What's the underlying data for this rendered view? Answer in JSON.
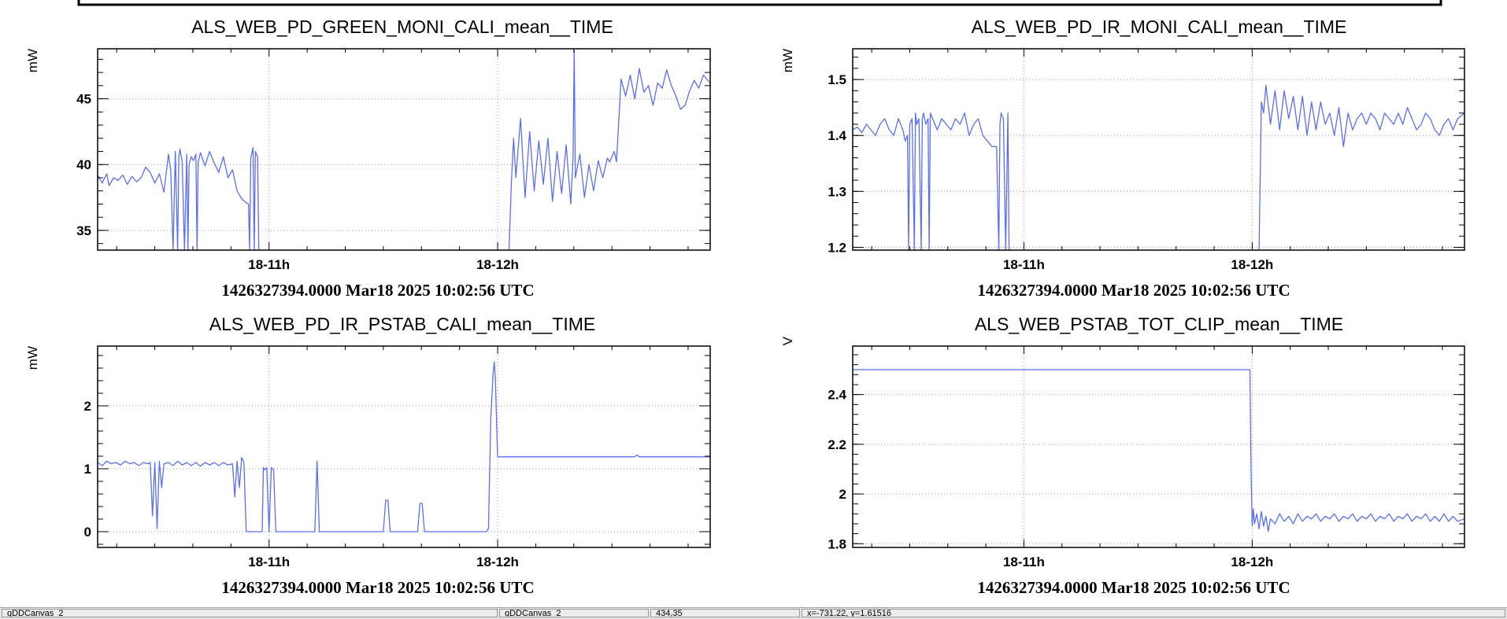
{
  "chart_data": [
    {
      "type": "line",
      "title": "ALS_WEB_PD_GREEN_MONI_CALI_mean__TIME",
      "ylabel": "mW",
      "xlabel": "1426327394.0000 Mar18 2025 10:02:56 UTC",
      "xlim": [
        10.25,
        12.93
      ],
      "ylim": [
        33.5,
        48.8
      ],
      "yticks": [
        35,
        40,
        45
      ],
      "ytick_labels": [
        "35",
        "40",
        "45"
      ],
      "xticks": [
        11,
        12
      ],
      "xtick_labels": [
        "18-11h",
        "18-12h"
      ],
      "grid": true,
      "color": "#5a6ff0",
      "x": [
        10.25,
        10.27,
        10.29,
        10.3,
        10.32,
        10.34,
        10.36,
        10.38,
        10.4,
        10.42,
        10.44,
        10.46,
        10.48,
        10.5,
        10.52,
        10.54,
        10.56,
        10.57,
        10.58,
        10.59,
        10.6,
        10.605,
        10.61,
        10.62,
        10.63,
        10.64,
        10.645,
        10.65,
        10.66,
        10.67,
        10.68,
        10.685,
        10.69,
        10.7,
        10.72,
        10.74,
        10.76,
        10.78,
        10.8,
        10.82,
        10.84,
        10.86,
        10.88,
        10.9,
        10.91,
        10.915,
        10.92,
        10.93,
        10.935,
        10.94,
        10.95,
        10.955,
        10.96,
        11.0,
        11.5,
        12.05,
        12.06,
        12.07,
        12.08,
        12.1,
        12.12,
        12.14,
        12.16,
        12.18,
        12.2,
        12.22,
        12.24,
        12.26,
        12.28,
        12.3,
        12.32,
        12.33,
        12.335,
        12.34,
        12.36,
        12.38,
        12.4,
        12.42,
        12.44,
        12.46,
        12.48,
        12.49,
        12.5,
        12.51,
        12.52,
        12.54,
        12.56,
        12.58,
        12.6,
        12.62,
        12.64,
        12.66,
        12.68,
        12.7,
        12.72,
        12.74,
        12.76,
        12.78,
        12.8,
        12.82,
        12.84,
        12.86,
        12.88,
        12.9,
        12.93
      ],
      "y": [
        39.2,
        38.6,
        39.3,
        38.4,
        39.0,
        38.8,
        39.2,
        38.5,
        39.1,
        38.7,
        39.0,
        39.8,
        39.4,
        38.6,
        39.3,
        37.9,
        40.8,
        39.5,
        33.5,
        41.0,
        33.5,
        40.5,
        41.2,
        40.2,
        33.5,
        40.8,
        33.5,
        40.0,
        40.6,
        40.3,
        40.8,
        33.5,
        40.2,
        40.9,
        39.9,
        41.0,
        40.1,
        39.4,
        40.6,
        39.0,
        39.6,
        38.0,
        37.4,
        37.1,
        37.0,
        33.5,
        40.5,
        41.3,
        33.5,
        41.0,
        40.6,
        33.5,
        33.5,
        null,
        null,
        33.5,
        38.5,
        42.0,
        39.0,
        43.5,
        37.5,
        42.5,
        38.0,
        41.8,
        38.5,
        42.0,
        37.2,
        41.0,
        37.8,
        41.5,
        37.0,
        40.5,
        48.8,
        39.0,
        40.8,
        37.5,
        40.0,
        38.0,
        40.3,
        39.0,
        40.5,
        40.2,
        40.6,
        41.0,
        40.2,
        46.5,
        45.2,
        46.8,
        45.0,
        47.3,
        45.5,
        46.0,
        44.5,
        46.2,
        45.8,
        47.2,
        46.0,
        45.2,
        44.2,
        44.5,
        45.6,
        46.4,
        45.8,
        46.8,
        46.2
      ]
    },
    {
      "type": "line",
      "title": "ALS_WEB_PD_IR_MONI_CALI_mean__TIME",
      "ylabel": "mW",
      "xlabel": "1426327394.0000 Mar18 2025 10:02:56 UTC",
      "xlim": [
        10.25,
        12.93
      ],
      "ylim": [
        1.195,
        1.555
      ],
      "yticks": [
        1.2,
        1.3,
        1.4,
        1.5
      ],
      "ytick_labels": [
        "1.2",
        "1.3",
        "1.4",
        "1.5"
      ],
      "xticks": [
        11,
        12
      ],
      "xtick_labels": [
        "18-11h",
        "18-12h"
      ],
      "grid": true,
      "color": "#5a6ff0",
      "x": [
        10.25,
        10.27,
        10.29,
        10.31,
        10.33,
        10.35,
        10.37,
        10.39,
        10.41,
        10.43,
        10.45,
        10.47,
        10.48,
        10.49,
        10.495,
        10.5,
        10.51,
        10.52,
        10.525,
        10.53,
        10.54,
        10.55,
        10.555,
        10.56,
        10.57,
        10.58,
        10.585,
        10.59,
        10.6,
        10.62,
        10.64,
        10.66,
        10.68,
        10.7,
        10.72,
        10.74,
        10.76,
        10.78,
        10.8,
        10.82,
        10.84,
        10.86,
        10.88,
        10.89,
        10.895,
        10.9,
        10.91,
        10.92,
        10.93,
        10.935,
        10.94,
        11.0,
        11.5,
        12.03,
        12.04,
        12.05,
        12.06,
        12.08,
        12.1,
        12.12,
        12.14,
        12.16,
        12.18,
        12.2,
        12.22,
        12.24,
        12.26,
        12.28,
        12.3,
        12.32,
        12.34,
        12.36,
        12.38,
        12.4,
        12.42,
        12.44,
        12.46,
        12.48,
        12.5,
        12.52,
        12.54,
        12.56,
        12.58,
        12.6,
        12.62,
        12.64,
        12.66,
        12.68,
        12.7,
        12.72,
        12.74,
        12.76,
        12.78,
        12.8,
        12.82,
        12.84,
        12.86,
        12.88,
        12.9,
        12.93
      ],
      "y": [
        1.41,
        1.415,
        1.405,
        1.42,
        1.41,
        1.4,
        1.42,
        1.43,
        1.41,
        1.4,
        1.43,
        1.41,
        1.39,
        1.4,
        1.195,
        1.42,
        1.43,
        1.195,
        1.44,
        1.42,
        1.43,
        1.195,
        1.43,
        1.44,
        1.42,
        1.43,
        1.195,
        1.44,
        1.43,
        1.41,
        1.43,
        1.42,
        1.41,
        1.43,
        1.42,
        1.44,
        1.4,
        1.42,
        1.43,
        1.4,
        1.39,
        1.38,
        1.38,
        1.195,
        1.42,
        1.44,
        1.43,
        1.195,
        1.44,
        1.195,
        1.195,
        null,
        null,
        1.195,
        1.46,
        1.44,
        1.49,
        1.42,
        1.48,
        1.41,
        1.48,
        1.43,
        1.47,
        1.41,
        1.47,
        1.4,
        1.46,
        1.41,
        1.46,
        1.42,
        1.44,
        1.4,
        1.45,
        1.38,
        1.44,
        1.41,
        1.43,
        1.44,
        1.42,
        1.44,
        1.43,
        1.41,
        1.44,
        1.43,
        1.42,
        1.44,
        1.42,
        1.45,
        1.43,
        1.41,
        1.42,
        1.44,
        1.43,
        1.41,
        1.4,
        1.42,
        1.43,
        1.41,
        1.43,
        1.44
      ]
    },
    {
      "type": "line",
      "title": "ALS_WEB_PD_IR_PSTAB_CALI_mean__TIME",
      "ylabel": "mW",
      "xlabel": "1426327394.0000 Mar18 2025 10:02:56 UTC",
      "xlim": [
        10.25,
        12.93
      ],
      "ylim": [
        -0.25,
        2.95
      ],
      "yticks": [
        0,
        1,
        2
      ],
      "ytick_labels": [
        "0",
        "1",
        "2"
      ],
      "xticks": [
        11,
        12
      ],
      "xtick_labels": [
        "18-11h",
        "18-12h"
      ],
      "grid": true,
      "color": "#5a6ff0",
      "x": [
        10.25,
        10.27,
        10.29,
        10.31,
        10.33,
        10.35,
        10.37,
        10.39,
        10.41,
        10.43,
        10.45,
        10.47,
        10.48,
        10.49,
        10.5,
        10.51,
        10.52,
        10.53,
        10.54,
        10.56,
        10.58,
        10.6,
        10.62,
        10.64,
        10.66,
        10.68,
        10.7,
        10.72,
        10.74,
        10.76,
        10.78,
        10.8,
        10.82,
        10.84,
        10.85,
        10.86,
        10.87,
        10.88,
        10.89,
        10.9,
        10.91,
        10.92,
        10.94,
        10.96,
        10.97,
        10.975,
        10.98,
        10.99,
        11.0,
        11.01,
        11.02,
        11.03,
        11.05,
        11.1,
        11.15,
        11.2,
        11.21,
        11.22,
        11.23,
        11.24,
        11.3,
        11.4,
        11.5,
        11.51,
        11.52,
        11.53,
        11.54,
        11.6,
        11.65,
        11.66,
        11.67,
        11.68,
        11.69,
        11.75,
        11.8,
        11.85,
        11.9,
        11.95,
        11.96,
        11.97,
        11.98,
        11.985,
        11.99,
        12.0,
        12.1,
        12.3,
        12.5,
        12.6,
        12.61,
        12.62,
        12.7,
        12.8,
        12.93
      ],
      "y": [
        1.1,
        1.05,
        1.12,
        1.08,
        1.1,
        1.06,
        1.12,
        1.08,
        1.1,
        1.05,
        1.1,
        1.08,
        1.1,
        0.25,
        1.1,
        0.05,
        1.12,
        0.7,
        1.08,
        1.1,
        1.05,
        1.12,
        1.06,
        1.1,
        1.05,
        1.1,
        1.04,
        1.1,
        1.06,
        1.1,
        1.05,
        1.1,
        1.06,
        1.08,
        0.55,
        1.12,
        0.7,
        1.18,
        1.1,
        0.0,
        0.0,
        0.0,
        0.0,
        0.0,
        0.0,
        1.02,
        0.98,
        1.02,
        0.0,
        1.02,
        0.98,
        0.0,
        0.0,
        0.0,
        0.0,
        0.0,
        1.12,
        0.0,
        0.0,
        0.0,
        0.0,
        0.0,
        0.0,
        0.5,
        0.5,
        0.0,
        0.0,
        0.0,
        0.0,
        0.45,
        0.45,
        0.0,
        0.0,
        0.0,
        0.0,
        0.0,
        0.0,
        0.0,
        0.05,
        1.8,
        2.5,
        2.7,
        2.45,
        1.19,
        1.19,
        1.19,
        1.19,
        1.19,
        1.22,
        1.19,
        1.19,
        1.19,
        1.19
      ]
    },
    {
      "type": "line",
      "title": "ALS_WEB_PSTAB_TOT_CLIP_mean__TIME",
      "ylabel": "V",
      "xlabel": "1426327394.0000 Mar18 2025 10:02:56 UTC",
      "xlim": [
        10.25,
        12.93
      ],
      "ylim": [
        1.785,
        2.595
      ],
      "yticks": [
        1.8,
        2.0,
        2.2,
        2.4
      ],
      "ytick_labels": [
        "1.8",
        "2",
        "2.2",
        "2.4"
      ],
      "xticks": [
        11,
        12
      ],
      "xtick_labels": [
        "18-11h",
        "18-12h"
      ],
      "grid": true,
      "color": "#5a6ff0",
      "x": [
        10.25,
        11.99,
        11.995,
        12.0,
        12.005,
        12.01,
        12.02,
        12.03,
        12.04,
        12.05,
        12.06,
        12.07,
        12.08,
        12.1,
        12.12,
        12.14,
        12.16,
        12.18,
        12.2,
        12.22,
        12.24,
        12.26,
        12.28,
        12.3,
        12.32,
        12.34,
        12.36,
        12.38,
        12.4,
        12.42,
        12.44,
        12.46,
        12.48,
        12.5,
        12.52,
        12.54,
        12.56,
        12.58,
        12.6,
        12.62,
        12.64,
        12.66,
        12.68,
        12.7,
        12.72,
        12.74,
        12.76,
        12.78,
        12.8,
        12.82,
        12.84,
        12.86,
        12.88,
        12.9,
        12.93
      ],
      "y": [
        2.5,
        2.5,
        2.1,
        1.87,
        1.94,
        1.88,
        1.92,
        1.86,
        1.93,
        1.87,
        1.91,
        1.85,
        1.9,
        1.88,
        1.92,
        1.89,
        1.91,
        1.88,
        1.92,
        1.89,
        1.91,
        1.9,
        1.92,
        1.89,
        1.91,
        1.9,
        1.92,
        1.89,
        1.91,
        1.9,
        1.92,
        1.89,
        1.91,
        1.9,
        1.92,
        1.89,
        1.91,
        1.9,
        1.92,
        1.89,
        1.91,
        1.9,
        1.92,
        1.89,
        1.91,
        1.9,
        1.92,
        1.89,
        1.91,
        1.89,
        1.92,
        1.89,
        1.91,
        1.89,
        1.9
      ]
    }
  ],
  "status_bar": {
    "cell1": "gDDCanvas_2",
    "cell2": "gDDCanvas_2",
    "cell3": "434,35",
    "cell4": "x=-731.22, y=1.61516"
  }
}
